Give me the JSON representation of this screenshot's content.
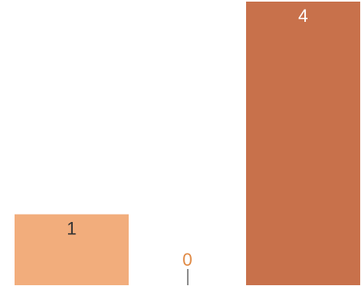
{
  "chart_data": {
    "type": "bar",
    "categories": [
      "",
      "",
      ""
    ],
    "values": [
      1,
      0,
      4
    ],
    "data_labels": [
      "1",
      "0",
      "4"
    ],
    "colors": [
      "#f2ad7c",
      "#8c8c8c",
      "#c8714b"
    ],
    "label_colors": [
      "#333333",
      "#e08a45",
      "#ffffff"
    ],
    "ylim": [
      0,
      4
    ],
    "grid": false,
    "legend": "none",
    "title": "",
    "xlabel": "",
    "ylabel": ""
  }
}
